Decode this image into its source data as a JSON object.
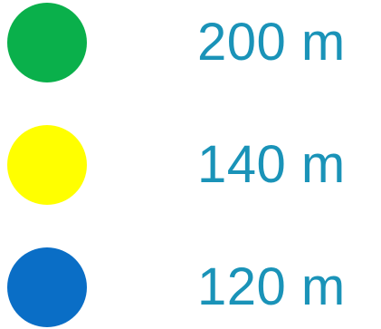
{
  "legend": {
    "items": [
      {
        "label": "200 m",
        "color": "#0ab04b"
      },
      {
        "label": "140 m",
        "color": "#ffff00"
      },
      {
        "label": "120 m",
        "color": "#0a6ec6"
      }
    ],
    "text_color": "#1a93b8"
  }
}
